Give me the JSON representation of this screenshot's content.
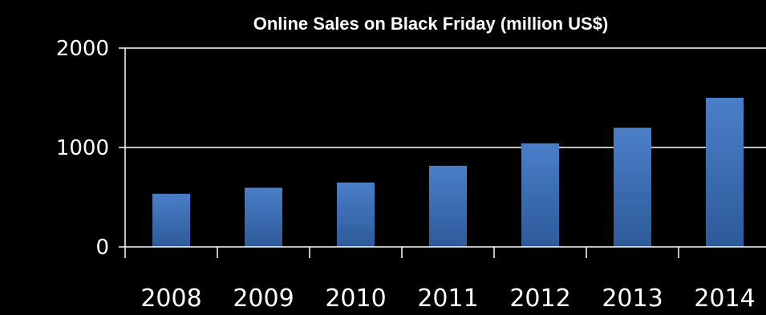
{
  "chart_data": {
    "type": "bar",
    "title": "Online Sales on Black Friday (million US$)",
    "xlabel": "",
    "ylabel": "",
    "categories": [
      "2008",
      "2009",
      "2010",
      "2011",
      "2012",
      "2013",
      "2014"
    ],
    "values": [
      534,
      595,
      648,
      816,
      1042,
      1198,
      1500
    ],
    "ylim": [
      0,
      2000
    ],
    "yticks": [
      "0",
      "1000",
      "2000"
    ],
    "grid": true,
    "legend": "none",
    "colors": {
      "background": "#000000",
      "bar_top": "#4a7fc8",
      "bar_bottom": "#2d5a9a",
      "axis": "#ffffff",
      "text": "#ffffff"
    }
  }
}
